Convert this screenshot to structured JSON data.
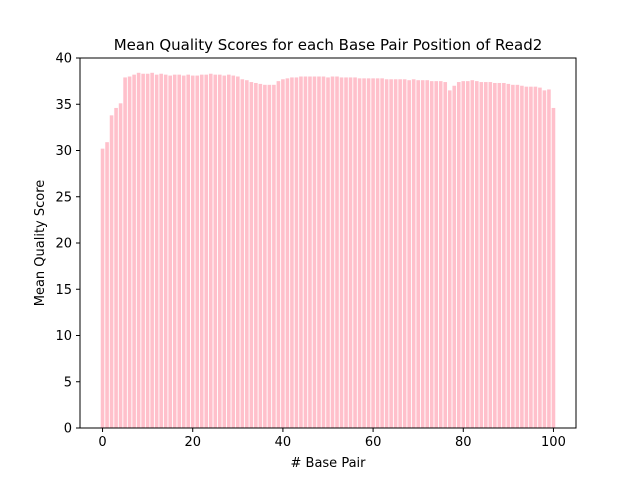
{
  "chart_data": {
    "type": "bar",
    "title": "Mean Quality Scores for each Base Pair Position of Read2",
    "xlabel": "# Base Pair",
    "ylabel": "Mean Quality Score",
    "xlim": [
      -5,
      105
    ],
    "ylim": [
      0,
      40
    ],
    "xticks": [
      0,
      20,
      40,
      60,
      80,
      100
    ],
    "yticks": [
      0,
      5,
      10,
      15,
      20,
      25,
      30,
      35,
      40
    ],
    "grid": false,
    "legend": "none",
    "bar_color": "#ffc0cb",
    "x": [
      0,
      1,
      2,
      3,
      4,
      5,
      6,
      7,
      8,
      9,
      10,
      11,
      12,
      13,
      14,
      15,
      16,
      17,
      18,
      19,
      20,
      21,
      22,
      23,
      24,
      25,
      26,
      27,
      28,
      29,
      30,
      31,
      32,
      33,
      34,
      35,
      36,
      37,
      38,
      39,
      40,
      41,
      42,
      43,
      44,
      45,
      46,
      47,
      48,
      49,
      50,
      51,
      52,
      53,
      54,
      55,
      56,
      57,
      58,
      59,
      60,
      61,
      62,
      63,
      64,
      65,
      66,
      67,
      68,
      69,
      70,
      71,
      72,
      73,
      74,
      75,
      76,
      77,
      78,
      79,
      80,
      81,
      82,
      83,
      84,
      85,
      86,
      87,
      88,
      89,
      90,
      91,
      92,
      93,
      94,
      95,
      96,
      97,
      98,
      99,
      100
    ],
    "values": [
      30.2,
      30.9,
      33.8,
      34.6,
      35.1,
      37.9,
      38.0,
      38.2,
      38.4,
      38.3,
      38.3,
      38.4,
      38.2,
      38.3,
      38.2,
      38.1,
      38.2,
      38.2,
      38.1,
      38.2,
      38.1,
      38.1,
      38.2,
      38.2,
      38.3,
      38.2,
      38.2,
      38.1,
      38.2,
      38.1,
      38.0,
      37.7,
      37.6,
      37.4,
      37.3,
      37.2,
      37.1,
      37.1,
      37.1,
      37.5,
      37.7,
      37.8,
      37.9,
      37.9,
      38.0,
      38.0,
      38.0,
      38.0,
      38.0,
      38.0,
      37.9,
      38.0,
      38.0,
      37.9,
      37.9,
      37.9,
      37.9,
      37.8,
      37.8,
      37.8,
      37.8,
      37.8,
      37.8,
      37.7,
      37.7,
      37.7,
      37.7,
      37.7,
      37.6,
      37.7,
      37.6,
      37.6,
      37.6,
      37.5,
      37.5,
      37.5,
      37.4,
      36.5,
      37.0,
      37.4,
      37.5,
      37.5,
      37.6,
      37.5,
      37.4,
      37.4,
      37.4,
      37.3,
      37.3,
      37.3,
      37.2,
      37.1,
      37.1,
      37.0,
      36.9,
      36.9,
      36.9,
      36.8,
      36.5,
      36.6,
      34.6
    ]
  }
}
